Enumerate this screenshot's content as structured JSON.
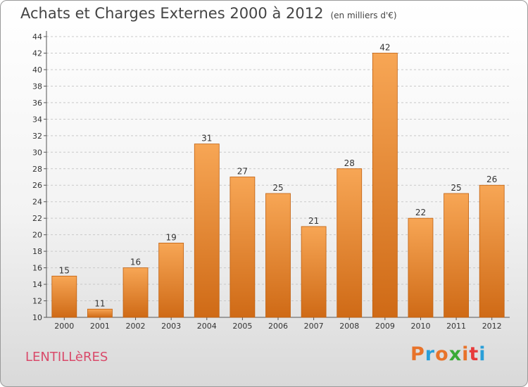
{
  "chart_data": {
    "type": "bar",
    "title": "Achats et Charges Externes 2000 à 2012",
    "subtitle": "(en milliers d'€)",
    "categories": [
      "2000",
      "2001",
      "2002",
      "2003",
      "2004",
      "2005",
      "2006",
      "2007",
      "2008",
      "2009",
      "2010",
      "2011",
      "2012"
    ],
    "values": [
      15,
      11,
      16,
      19,
      31,
      27,
      25,
      21,
      28,
      42,
      22,
      25,
      26
    ],
    "ylim": [
      10,
      44
    ],
    "yticks": [
      10,
      12,
      14,
      16,
      18,
      20,
      22,
      24,
      26,
      28,
      30,
      32,
      34,
      36,
      38,
      40,
      42,
      44
    ],
    "grid": true,
    "bar_color_top": "#f7a655",
    "bar_color_bottom": "#cf6a16"
  },
  "footer": {
    "town": "LENTILLèRES",
    "brand": "Proxiti",
    "brand_colors": [
      "#e8732a",
      "#2a9fd8",
      "#e8732a",
      "#3aaa35",
      "#e8732a",
      "#e83a3a",
      "#2a9fd8"
    ]
  }
}
